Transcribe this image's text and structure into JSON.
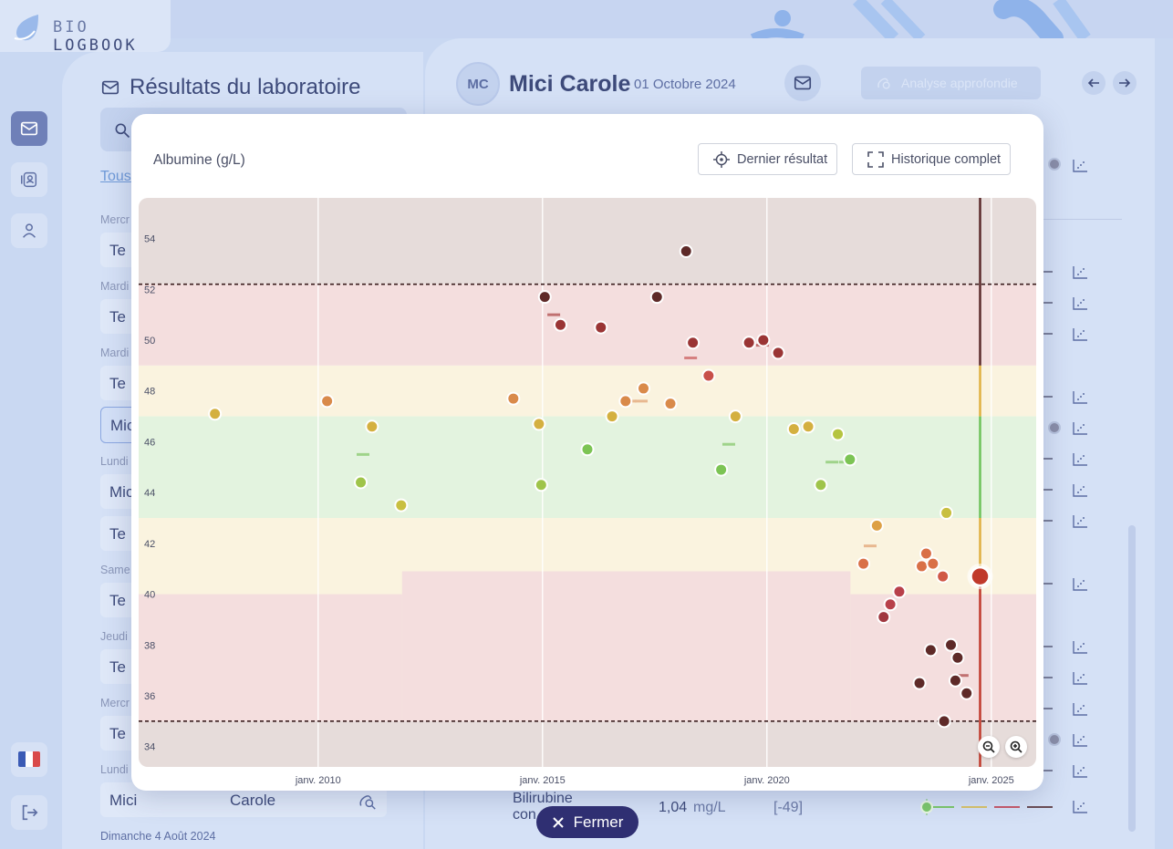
{
  "app": {
    "logo_left": "BIO",
    "logo_right": "LOGBOOK"
  },
  "colors": {
    "accent": "#6f80b8",
    "close_button": "#2f2f72",
    "current_point": "#c0392b"
  },
  "sidebar": {
    "icons": [
      "mail-icon",
      "contacts-icon",
      "user-icon"
    ],
    "language_flag": "flag-fr-icon",
    "logout_icon": "logout-icon"
  },
  "list": {
    "title": "Résultats du laboratoire",
    "filter_all": "Tous",
    "days": [
      "Mercr",
      "Mardi",
      "Mardi",
      "Lundi",
      "Same",
      "Jeudi",
      "Mercr",
      "Lundi",
      "Dimanche 4 Août 2024"
    ],
    "rows": [
      "Te",
      "Te",
      "Te",
      "Mic",
      "Mic",
      "Te",
      "Te",
      "Te",
      "Te"
    ],
    "last_row": {
      "first": "Mici",
      "last": "Carole"
    }
  },
  "patient": {
    "initials": "MC",
    "name": "Mici Carole",
    "date": "01 Octobre 2024",
    "deep_analysis_label": "Analyse approfondie"
  },
  "bilirubin": {
    "label_line1": "Bilirubine",
    "label_line2": "con",
    "value": "1,04",
    "unit": "mg/L",
    "range": "[-49]"
  },
  "modal": {
    "title": "Albumine (g/L)",
    "last_result_label": "Dernier résultat",
    "full_history_label": "Historique complet",
    "close_label": "Fermer"
  },
  "chart_data": {
    "type": "scatter",
    "title": "Albumine (g/L)",
    "ylabel": "",
    "xlabel": "",
    "ylim": [
      33.2,
      55.6
    ],
    "xlim": [
      2006.0,
      2026.0
    ],
    "y_ticks": [
      34,
      36,
      38,
      40,
      42,
      44,
      46,
      48,
      50,
      52,
      54
    ],
    "x_ticks": [
      {
        "value": 2010,
        "label": "janv. 2010"
      },
      {
        "value": 2015,
        "label": "janv. 2015"
      },
      {
        "value": 2020,
        "label": "janv. 2020"
      },
      {
        "value": 2025,
        "label": "janv. 2025"
      }
    ],
    "reference_lines": [
      52.2,
      35.0
    ],
    "current_date": 2024.75,
    "bands": [
      {
        "from": 52.2,
        "to": 55.6,
        "color": "#e6dcda"
      },
      {
        "from": 49.0,
        "to": 52.2,
        "color": "#f4dede"
      },
      {
        "from": 47.0,
        "to": 49.0,
        "color": "#faf3df"
      },
      {
        "from": 43.0,
        "to": 47.0,
        "color": "#e3f3df"
      },
      {
        "from": 35.0,
        "to": 43.0,
        "color": "#faf3df"
      },
      {
        "from": 33.2,
        "to": 35.0,
        "color": "#e6dcda"
      }
    ],
    "low_band_steps": [
      {
        "x0": 2006.0,
        "x1": 2011.87,
        "top": 40.0
      },
      {
        "x0": 2011.87,
        "x1": 2021.86,
        "top": 40.9
      },
      {
        "x0": 2021.86,
        "x1": 2026.0,
        "top": 40.0
      }
    ],
    "points": [
      {
        "x": 2007.7,
        "y": 47.1
      },
      {
        "x": 2010.2,
        "y": 47.6
      },
      {
        "x": 2010.95,
        "y": 44.4
      },
      {
        "x": 2011.2,
        "y": 46.6
      },
      {
        "x": 2011.85,
        "y": 43.5
      },
      {
        "x": 2014.35,
        "y": 47.7
      },
      {
        "x": 2014.92,
        "y": 46.7
      },
      {
        "x": 2014.97,
        "y": 44.3
      },
      {
        "x": 2015.05,
        "y": 51.7
      },
      {
        "x": 2015.4,
        "y": 50.6
      },
      {
        "x": 2016.0,
        "y": 45.7
      },
      {
        "x": 2016.3,
        "y": 50.5
      },
      {
        "x": 2016.55,
        "y": 47.0
      },
      {
        "x": 2016.85,
        "y": 47.6
      },
      {
        "x": 2017.25,
        "y": 48.1
      },
      {
        "x": 2017.55,
        "y": 51.7
      },
      {
        "x": 2017.85,
        "y": 47.5
      },
      {
        "x": 2018.2,
        "y": 53.5
      },
      {
        "x": 2018.35,
        "y": 49.9
      },
      {
        "x": 2018.7,
        "y": 48.6
      },
      {
        "x": 2018.98,
        "y": 44.9
      },
      {
        "x": 2019.3,
        "y": 47.0
      },
      {
        "x": 2019.6,
        "y": 49.9
      },
      {
        "x": 2019.92,
        "y": 50.0
      },
      {
        "x": 2020.25,
        "y": 49.5
      },
      {
        "x": 2020.6,
        "y": 46.5
      },
      {
        "x": 2020.92,
        "y": 46.6
      },
      {
        "x": 2021.2,
        "y": 44.3
      },
      {
        "x": 2021.58,
        "y": 46.3
      },
      {
        "x": 2021.85,
        "y": 45.3
      },
      {
        "x": 2022.45,
        "y": 42.7
      },
      {
        "x": 2022.15,
        "y": 41.2
      },
      {
        "x": 2022.6,
        "y": 39.1
      },
      {
        "x": 2022.75,
        "y": 39.6
      },
      {
        "x": 2022.95,
        "y": 40.1
      },
      {
        "x": 2023.4,
        "y": 36.5
      },
      {
        "x": 2023.45,
        "y": 41.1
      },
      {
        "x": 2023.55,
        "y": 41.6
      },
      {
        "x": 2023.65,
        "y": 37.8
      },
      {
        "x": 2023.7,
        "y": 41.2
      },
      {
        "x": 2023.92,
        "y": 40.7
      },
      {
        "x": 2023.95,
        "y": 35.0
      },
      {
        "x": 2024.0,
        "y": 43.2
      },
      {
        "x": 2024.1,
        "y": 38.0
      },
      {
        "x": 2024.2,
        "y": 36.6
      },
      {
        "x": 2024.25,
        "y": 37.5
      },
      {
        "x": 2024.45,
        "y": 36.1
      }
    ],
    "current_point": {
      "x": 2024.75,
      "y": 40.7
    },
    "reference_dashes": [
      {
        "x": 2011.0,
        "y": 45.5,
        "color": "#9fd38a"
      },
      {
        "x": 2015.25,
        "y": 51.0,
        "color": "#c07070"
      },
      {
        "x": 2016.95,
        "y": 47.6,
        "color": "#e8b890"
      },
      {
        "x": 2017.2,
        "y": 47.6,
        "color": "#e8b890"
      },
      {
        "x": 2018.3,
        "y": 49.3,
        "color": "#d68080"
      },
      {
        "x": 2019.15,
        "y": 45.9,
        "color": "#9fd38a"
      },
      {
        "x": 2019.9,
        "y": 49.8,
        "color": "#c07070"
      },
      {
        "x": 2021.45,
        "y": 45.2,
        "color": "#9fd38a"
      },
      {
        "x": 2021.75,
        "y": 45.2,
        "color": "#9fd38a"
      },
      {
        "x": 2022.3,
        "y": 41.9,
        "color": "#e8b890"
      },
      {
        "x": 2024.35,
        "y": 36.8,
        "color": "#c07070"
      }
    ]
  }
}
